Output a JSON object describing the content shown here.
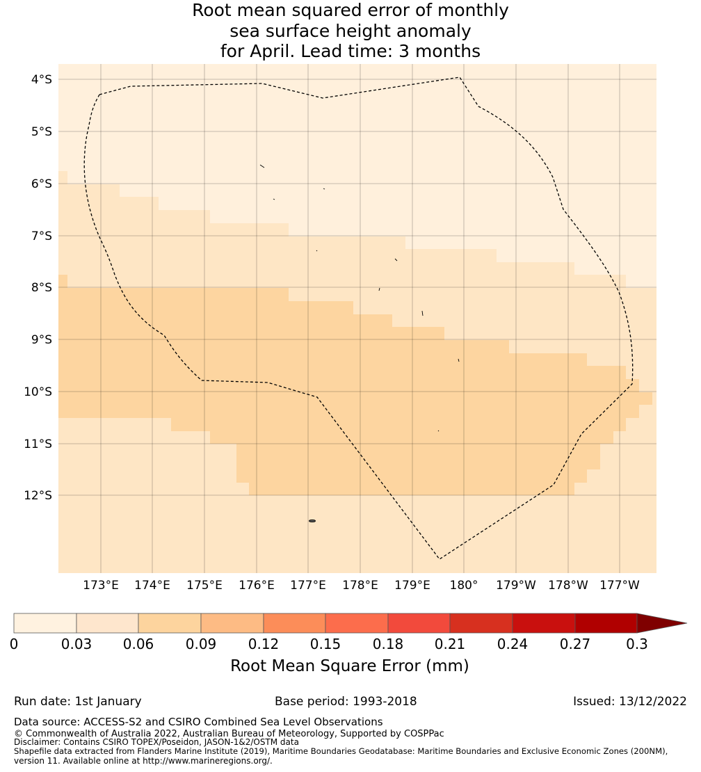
{
  "title": {
    "line1": "Root mean squared error of monthly",
    "line2": "sea surface height anomaly",
    "line3": "for April. Lead time: 3 months"
  },
  "map": {
    "lat_labels": [
      "4°S",
      "5°S",
      "6°S",
      "7°S",
      "8°S",
      "9°S",
      "10°S",
      "11°S",
      "12°S"
    ],
    "lon_labels": [
      "173°E",
      "174°E",
      "175°E",
      "176°E",
      "177°E",
      "178°E",
      "179°E",
      "180°",
      "179°W",
      "178°W",
      "177°W"
    ]
  },
  "colorbar": {
    "tick_labels": [
      "0",
      "0.03",
      "0.06",
      "0.09",
      "0.12",
      "0.15",
      "0.18",
      "0.21",
      "0.24",
      "0.27",
      "0.3"
    ],
    "colors": [
      "#fff2e0",
      "#fee6cd",
      "#fdd49e",
      "#fdbb84",
      "#fc8d59",
      "#fc6d4c",
      "#f24a3c",
      "#d7301f",
      "#c9100e",
      "#b00000",
      "#7f0000"
    ],
    "label": "Root Mean Square Error (mm)"
  },
  "footer": {
    "run_date": "Run date: 1st January",
    "base_period": "Base period: 1993-2018",
    "issued": "Issued: 13/12/2022",
    "data_source": "Data source: ACCESS-S2 and CSIRO Combined Sea Level Observations",
    "copyright": "© Commonwealth of Australia 2022, Australian Bureau of Meteorology, Supported by COSPPac",
    "disclaimer": "Disclaimer: Contains CSIRO TOPEX/Poseidon, JASON-1&2/OSTM data",
    "shapefile_line1": "Shapefile data extracted from Flanders Marine Institute (2019), Maritime Boundaries Geodatabase: Maritime Boundaries and Exclusive Economic Zones (200NM),",
    "shapefile_line2": "version 11. Available online at http://www.marineregions.org/."
  },
  "palette": {
    "band_lightest": "#fff0dc",
    "band_light": "#fee6c5",
    "band_mid": "#fdd5a0"
  }
}
